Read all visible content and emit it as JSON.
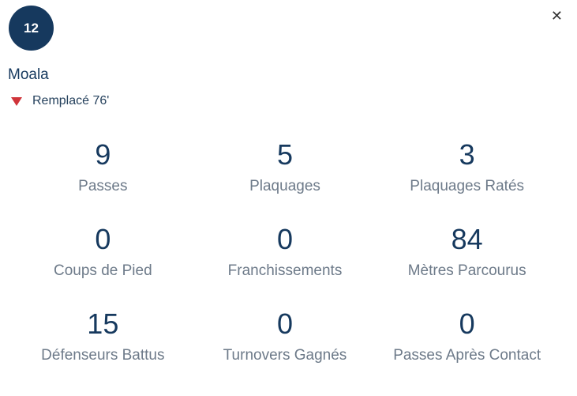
{
  "header": {
    "close_glyph": "✕"
  },
  "player": {
    "number": "12",
    "name": "Moala",
    "status": "Remplacé 76'"
  },
  "colors": {
    "navy": "#16395e",
    "substitution_red": "#d0343a",
    "label_gray": "#6d7a89",
    "close_gray": "#333333"
  },
  "stats": [
    {
      "value": "9",
      "label": "Passes"
    },
    {
      "value": "5",
      "label": "Plaquages"
    },
    {
      "value": "3",
      "label": "Plaquages Ratés"
    },
    {
      "value": "0",
      "label": "Coups de Pied"
    },
    {
      "value": "0",
      "label": "Franchissements"
    },
    {
      "value": "84",
      "label": "Mètres Parcourus"
    },
    {
      "value": "15",
      "label": "Défenseurs Battus"
    },
    {
      "value": "0",
      "label": "Turnovers Gagnés"
    },
    {
      "value": "0",
      "label": "Passes Après Contact"
    }
  ]
}
